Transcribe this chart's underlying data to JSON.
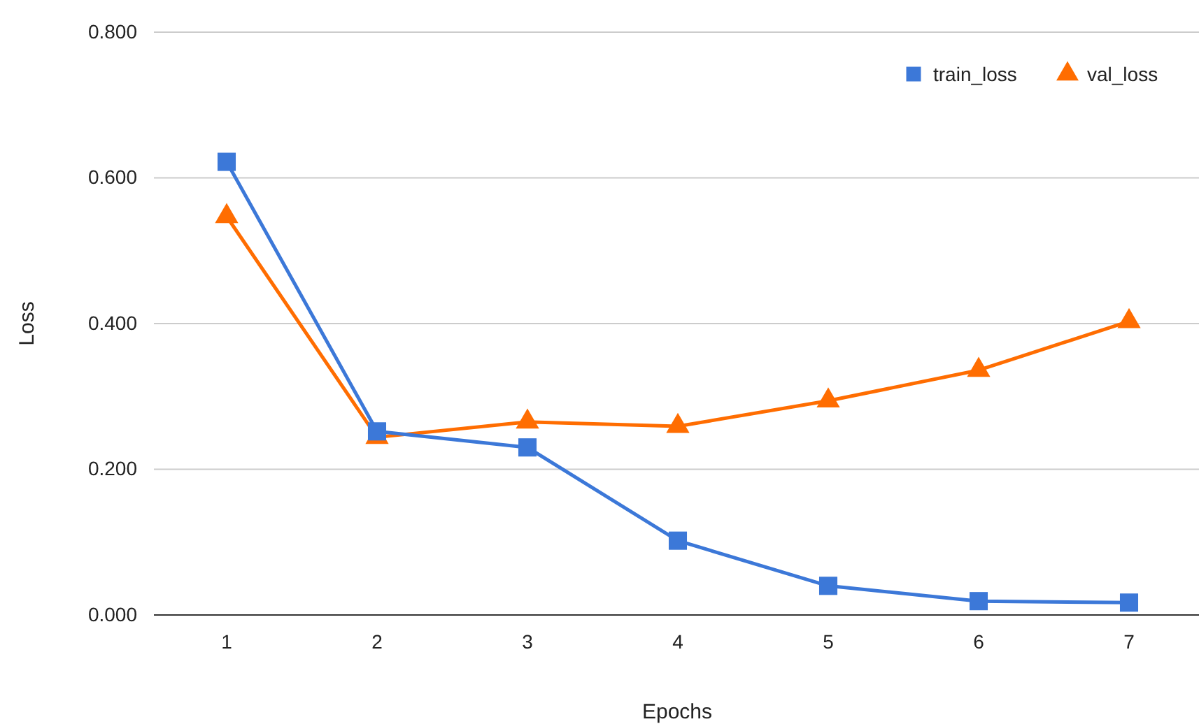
{
  "chart_data": {
    "type": "line",
    "xlabel": "Epochs",
    "ylabel": "Loss",
    "categories": [
      "1",
      "2",
      "3",
      "4",
      "5",
      "6",
      "7"
    ],
    "series": [
      {
        "name": "train_loss",
        "color": "#3c78d8",
        "marker": "square",
        "values": [
          0.622,
          0.252,
          0.23,
          0.102,
          0.04,
          0.019,
          0.017
        ]
      },
      {
        "name": "val_loss",
        "color": "#ff6d01",
        "marker": "triangle",
        "values": [
          0.547,
          0.244,
          0.265,
          0.259,
          0.294,
          0.336,
          0.403
        ]
      }
    ],
    "ylim": [
      0,
      0.8
    ],
    "yticks": [
      {
        "value": 0,
        "label": "0.000"
      },
      {
        "value": 0.2,
        "label": "0.200"
      },
      {
        "value": 0.4,
        "label": "0.400"
      },
      {
        "value": 0.6,
        "label": "0.600"
      },
      {
        "value": 0.8,
        "label": "0.800"
      }
    ],
    "grid": "y",
    "legend": "top right",
    "line_style": "solid"
  }
}
